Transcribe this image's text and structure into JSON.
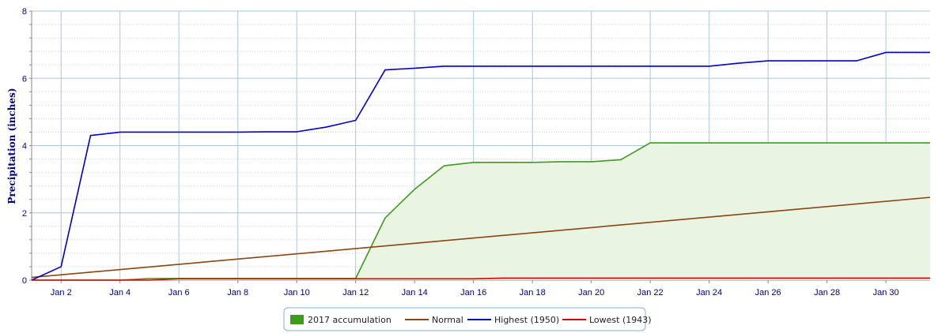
{
  "chart_data": {
    "type": "line",
    "title": "",
    "xlabel": "",
    "ylabel": "Precipitation (inches)",
    "ylim": [
      0,
      8
    ],
    "yticks": [
      0,
      2,
      4,
      6,
      8
    ],
    "xlim": [
      1,
      31.5
    ],
    "xticks": [
      {
        "day": 2,
        "label": "Jan 2"
      },
      {
        "day": 4,
        "label": "Jan 4"
      },
      {
        "day": 6,
        "label": "Jan 6"
      },
      {
        "day": 8,
        "label": "Jan 8"
      },
      {
        "day": 10,
        "label": "Jan 10"
      },
      {
        "day": 12,
        "label": "Jan 12"
      },
      {
        "day": 14,
        "label": "Jan 14"
      },
      {
        "day": 16,
        "label": "Jan 16"
      },
      {
        "day": 18,
        "label": "Jan 18"
      },
      {
        "day": 20,
        "label": "Jan 20"
      },
      {
        "day": 22,
        "label": "Jan 22"
      },
      {
        "day": 24,
        "label": "Jan 24"
      },
      {
        "day": 26,
        "label": "Jan 26"
      },
      {
        "day": 28,
        "label": "Jan 28"
      },
      {
        "day": 30,
        "label": "Jan 30"
      }
    ],
    "grid": true,
    "legend_position": "bottom-center",
    "series": [
      {
        "name": "2017 accumulation",
        "kind": "area",
        "color": "#3d9b1e",
        "fill": "#e9f4e2",
        "x": [
          1,
          2,
          3,
          4,
          5,
          6,
          7,
          8,
          9,
          10,
          11,
          12,
          13,
          14,
          15,
          16,
          17,
          18,
          19,
          20,
          21,
          22,
          23,
          24,
          25,
          26,
          27,
          28,
          29,
          30,
          31,
          31.5
        ],
        "values": [
          0,
          0,
          0,
          0,
          0.05,
          0.05,
          0.05,
          0.05,
          0.05,
          0.05,
          0.05,
          0.05,
          1.85,
          2.7,
          3.4,
          3.5,
          3.5,
          3.5,
          3.52,
          3.52,
          3.58,
          4.08,
          4.08,
          4.08,
          4.08,
          4.08,
          4.08,
          4.08,
          4.08,
          4.08,
          4.08,
          4.08
        ]
      },
      {
        "name": "Normal",
        "kind": "line",
        "color": "#8b4513",
        "x": [
          1,
          31.5
        ],
        "values": [
          0.08,
          2.46
        ]
      },
      {
        "name": "Highest (1950)",
        "kind": "line",
        "color": "#0000cc",
        "x": [
          1,
          2,
          3,
          4,
          5,
          6,
          7,
          8,
          9,
          10,
          11,
          12,
          13,
          14,
          15,
          16,
          17,
          18,
          19,
          20,
          21,
          22,
          23,
          24,
          25,
          26,
          27,
          28,
          29,
          30,
          31,
          31.5
        ],
        "values": [
          0,
          0.4,
          4.3,
          4.4,
          4.4,
          4.4,
          4.4,
          4.4,
          4.41,
          4.41,
          4.55,
          4.75,
          6.25,
          6.3,
          6.36,
          6.36,
          6.36,
          6.36,
          6.36,
          6.36,
          6.36,
          6.36,
          6.36,
          6.36,
          6.45,
          6.52,
          6.52,
          6.52,
          6.52,
          6.77,
          6.77,
          6.77
        ]
      },
      {
        "name": "Lowest (1943)",
        "kind": "line",
        "color": "#dd0000",
        "x": [
          1,
          5,
          6,
          16,
          17,
          31.5
        ],
        "values": [
          0,
          0,
          0.04,
          0.04,
          0.06,
          0.06
        ]
      }
    ]
  }
}
